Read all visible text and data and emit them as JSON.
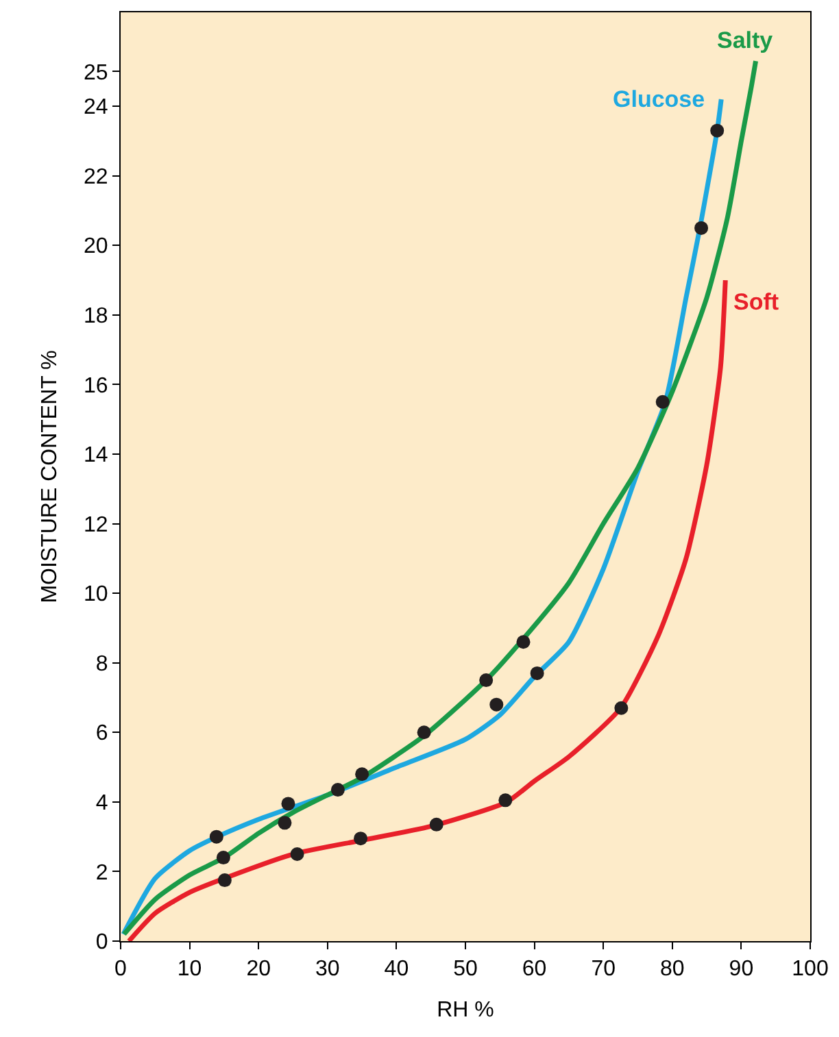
{
  "chart_data": {
    "type": "line",
    "xlabel": "RH %",
    "ylabel": "MOISTURE CONTENT %",
    "xlim": [
      0,
      100
    ],
    "xticks": [
      0,
      10,
      20,
      30,
      40,
      50,
      60,
      70,
      80,
      90,
      100
    ],
    "ylim": [
      0,
      26.7
    ],
    "yticks": [
      0,
      2,
      4,
      6,
      8,
      10,
      12,
      14,
      16,
      18,
      20,
      22,
      24,
      25
    ],
    "grid": false,
    "legend": false,
    "marker": "none",
    "series": [
      {
        "name": "Glucose",
        "color": "#1ea8e0",
        "x": [
          0.4,
          5,
          10,
          14,
          20,
          30,
          40,
          50,
          55,
          60,
          65,
          70,
          75,
          79,
          82,
          84,
          86.5,
          87.1
        ],
        "values": [
          0.2,
          1.8,
          2.6,
          3.0,
          3.5,
          4.2,
          5.0,
          5.8,
          6.5,
          7.6,
          8.6,
          10.7,
          13.5,
          15.5,
          18.5,
          20.5,
          23.3,
          24.2
        ]
      },
      {
        "name": "Salty",
        "color": "#1a9a48",
        "x": [
          0.5,
          5,
          10,
          15,
          20,
          25,
          31,
          35,
          44,
          53,
          58,
          65,
          70,
          75,
          80,
          85,
          88,
          90,
          91.5,
          92.1
        ],
        "values": [
          0.2,
          1.2,
          1.9,
          2.4,
          3.1,
          3.7,
          4.3,
          4.7,
          5.9,
          7.5,
          8.6,
          10.3,
          12,
          13.6,
          15.8,
          18.5,
          20.8,
          23,
          24.6,
          25.3
        ]
      },
      {
        "name": "Soft",
        "color": "#e8202a",
        "x": [
          1.2,
          5,
          10,
          15,
          25,
          35,
          45,
          56,
          60,
          65,
          72.5,
          78,
          82,
          85,
          87,
          87.7
        ],
        "values": [
          0.0,
          0.8,
          1.4,
          1.8,
          2.5,
          2.9,
          3.3,
          4.0,
          4.6,
          5.3,
          6.7,
          8.8,
          11,
          13.7,
          16.5,
          19.0
        ]
      },
      {
        "type": "scatter",
        "color": "#231f20",
        "marker": "circle",
        "x": [
          13.9,
          14.9,
          15.1,
          24.3,
          23.8,
          25.6,
          31.5,
          35,
          34.8,
          44,
          45.8,
          53,
          54.5,
          55.8,
          58.4,
          60.4,
          72.6,
          78.6,
          84.2,
          86.5
        ],
        "values": [
          3.0,
          2.4,
          1.75,
          3.95,
          3.4,
          2.5,
          4.35,
          4.8,
          2.95,
          6.0,
          3.35,
          7.5,
          6.8,
          4.05,
          8.6,
          7.7,
          6.7,
          15.5,
          20.5,
          23.3
        ]
      }
    ]
  }
}
